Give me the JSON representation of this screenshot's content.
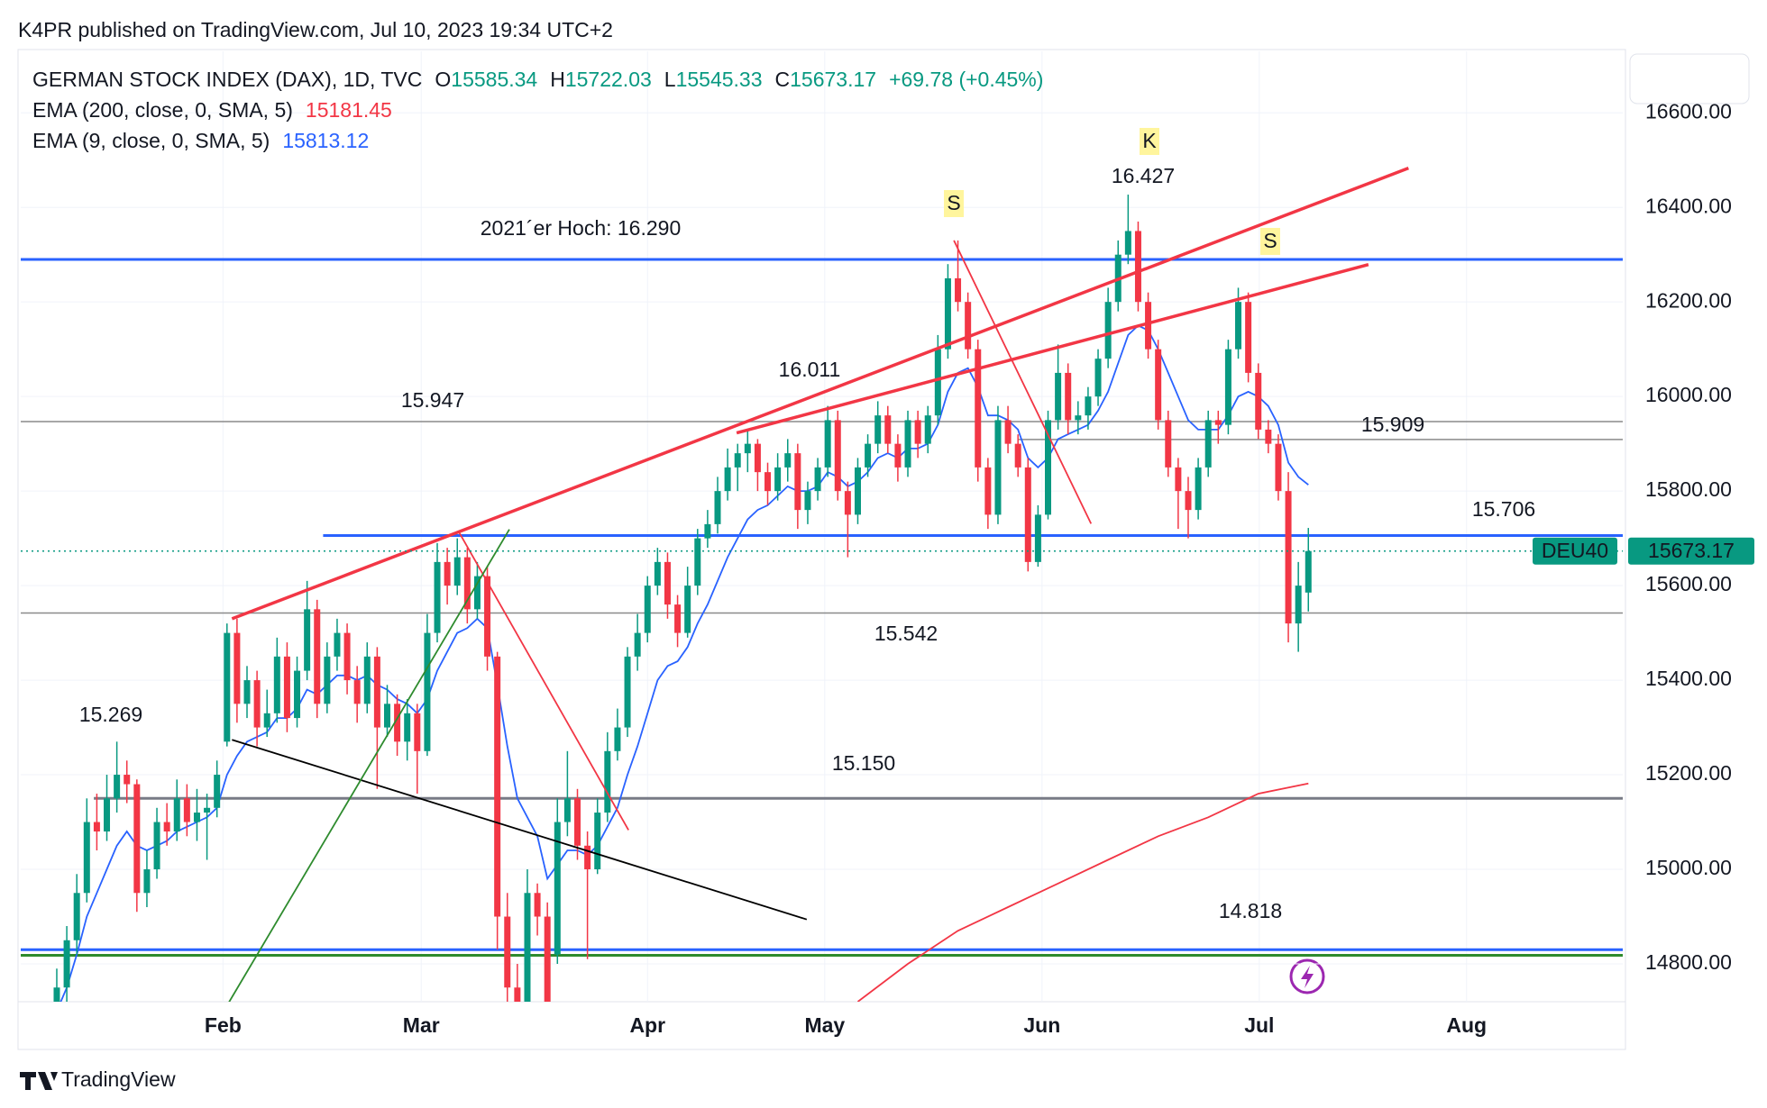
{
  "header": {
    "publisher": "K4PR published on TradingView.com, Jul 10, 2023 19:34 UTC+2",
    "brand": "TradingView"
  },
  "chart_data": {
    "type": "candlestick",
    "title": "GERMAN STOCK INDEX (DAX), 1D, TVC",
    "ohlc_legend": [
      {
        "key": "O",
        "value": 15585.34
      },
      {
        "key": "H",
        "value": 15722.03
      },
      {
        "key": "L",
        "value": 15545.33
      },
      {
        "key": "C",
        "value": 15673.17
      }
    ],
    "change": "+69.78 (+0.45%)",
    "symbol": "DEU40",
    "up_color": "#089981",
    "down_color": "#f23645",
    "candles": [
      [
        14700,
        14790,
        14660,
        14750
      ],
      [
        14750,
        14880,
        14720,
        14850
      ],
      [
        14850,
        14990,
        14820,
        14950
      ],
      [
        14950,
        15150,
        14930,
        15100
      ],
      [
        15100,
        15160,
        15040,
        15080
      ],
      [
        15080,
        15200,
        15060,
        15150
      ],
      [
        15150,
        15270,
        15120,
        15200
      ],
      [
        15200,
        15230,
        15140,
        15180
      ],
      [
        15180,
        15190,
        14910,
        14950
      ],
      [
        14950,
        15040,
        14920,
        15000
      ],
      [
        15000,
        15130,
        14980,
        15100
      ],
      [
        15100,
        15140,
        15050,
        15080
      ],
      [
        15080,
        15190,
        15060,
        15150
      ],
      [
        15150,
        15180,
        15070,
        15100
      ],
      [
        15100,
        15170,
        15060,
        15120
      ],
      [
        15120,
        15160,
        15020,
        15130
      ],
      [
        15130,
        15230,
        15110,
        15200
      ],
      [
        15270,
        15520,
        15260,
        15500
      ],
      [
        15500,
        15530,
        15310,
        15350
      ],
      [
        15350,
        15430,
        15320,
        15400
      ],
      [
        15400,
        15420,
        15260,
        15300
      ],
      [
        15300,
        15380,
        15280,
        15330
      ],
      [
        15330,
        15490,
        15310,
        15450
      ],
      [
        15450,
        15480,
        15290,
        15320
      ],
      [
        15320,
        15450,
        15300,
        15420
      ],
      [
        15420,
        15610,
        15400,
        15550
      ],
      [
        15550,
        15570,
        15320,
        15350
      ],
      [
        15350,
        15480,
        15330,
        15450
      ],
      [
        15450,
        15530,
        15420,
        15500
      ],
      [
        15500,
        15520,
        15370,
        15400
      ],
      [
        15400,
        15430,
        15310,
        15350
      ],
      [
        15350,
        15480,
        15330,
        15450
      ],
      [
        15450,
        15470,
        15170,
        15300
      ],
      [
        15300,
        15390,
        15280,
        15350
      ],
      [
        15350,
        15370,
        15240,
        15270
      ],
      [
        15270,
        15360,
        15230,
        15330
      ],
      [
        15330,
        15350,
        15160,
        15250
      ],
      [
        15250,
        15540,
        15240,
        15500
      ],
      [
        15500,
        15690,
        15480,
        15650
      ],
      [
        15650,
        15680,
        15560,
        15600
      ],
      [
        15600,
        15700,
        15580,
        15660
      ],
      [
        15660,
        15680,
        15520,
        15550
      ],
      [
        15550,
        15650,
        15530,
        15620
      ],
      [
        15620,
        15640,
        15420,
        15450
      ],
      [
        15450,
        15460,
        14830,
        14900
      ],
      [
        14900,
        14950,
        14720,
        14750
      ],
      [
        14750,
        14800,
        14700,
        14700
      ],
      [
        14700,
        15000,
        14700,
        14950
      ],
      [
        14950,
        14970,
        14860,
        14900
      ],
      [
        14900,
        14930,
        14700,
        14700
      ],
      [
        14820,
        15150,
        14800,
        15100
      ],
      [
        15100,
        15250,
        15070,
        15150
      ],
      [
        15150,
        15170,
        15020,
        15050
      ],
      [
        15050,
        15080,
        14810,
        15000
      ],
      [
        15000,
        15150,
        14990,
        15120
      ],
      [
        15120,
        15290,
        15100,
        15250
      ],
      [
        15250,
        15340,
        15230,
        15300
      ],
      [
        15300,
        15470,
        15280,
        15450
      ],
      [
        15450,
        15540,
        15420,
        15500
      ],
      [
        15500,
        15620,
        15480,
        15600
      ],
      [
        15600,
        15680,
        15580,
        15650
      ],
      [
        15650,
        15670,
        15530,
        15560
      ],
      [
        15560,
        15580,
        15470,
        15500
      ],
      [
        15500,
        15640,
        15490,
        15600
      ],
      [
        15600,
        15720,
        15580,
        15700
      ],
      [
        15700,
        15760,
        15680,
        15730
      ],
      [
        15730,
        15830,
        15710,
        15800
      ],
      [
        15800,
        15890,
        15780,
        15850
      ],
      [
        15850,
        15900,
        15800,
        15880
      ],
      [
        15880,
        15930,
        15840,
        15900
      ],
      [
        15900,
        15910,
        15800,
        15840
      ],
      [
        15840,
        15860,
        15770,
        15800
      ],
      [
        15800,
        15880,
        15780,
        15850
      ],
      [
        15850,
        15910,
        15820,
        15880
      ],
      [
        15880,
        15900,
        15720,
        15760
      ],
      [
        15760,
        15820,
        15730,
        15800
      ],
      [
        15800,
        15870,
        15780,
        15850
      ],
      [
        15850,
        15980,
        15830,
        15950
      ],
      [
        15950,
        15970,
        15780,
        15800
      ],
      [
        15800,
        15820,
        15660,
        15750
      ],
      [
        15750,
        15870,
        15730,
        15850
      ],
      [
        15850,
        15920,
        15830,
        15900
      ],
      [
        15900,
        15990,
        15880,
        15960
      ],
      [
        15960,
        15980,
        15880,
        15900
      ],
      [
        15900,
        15920,
        15820,
        15850
      ],
      [
        15850,
        15970,
        15830,
        15950
      ],
      [
        15950,
        15970,
        15870,
        15900
      ],
      [
        15900,
        15980,
        15880,
        15960
      ],
      [
        15960,
        16130,
        15940,
        16100
      ],
      [
        16100,
        16280,
        16080,
        16250
      ],
      [
        16250,
        16330,
        16180,
        16200
      ],
      [
        16200,
        16220,
        16080,
        16100
      ],
      [
        16100,
        16120,
        15820,
        15850
      ],
      [
        15850,
        15870,
        15720,
        15750
      ],
      [
        15750,
        15980,
        15730,
        15950
      ],
      [
        15950,
        15980,
        15880,
        15900
      ],
      [
        15900,
        15920,
        15830,
        15850
      ],
      [
        15850,
        15870,
        15630,
        15650
      ],
      [
        15650,
        15770,
        15640,
        15750
      ],
      [
        15750,
        15970,
        15740,
        15950
      ],
      [
        15950,
        16110,
        15930,
        16050
      ],
      [
        16050,
        16070,
        15920,
        15950
      ],
      [
        15950,
        15990,
        15920,
        15960
      ],
      [
        15960,
        16020,
        15930,
        16000
      ],
      [
        16000,
        16100,
        15980,
        16080
      ],
      [
        16080,
        16230,
        16060,
        16200
      ],
      [
        16200,
        16330,
        16180,
        16300
      ],
      [
        16300,
        16427,
        16280,
        16350
      ],
      [
        16350,
        16370,
        16180,
        16200
      ],
      [
        16200,
        16220,
        16080,
        16100
      ],
      [
        16100,
        16120,
        15930,
        15950
      ],
      [
        15950,
        15970,
        15830,
        15850
      ],
      [
        15850,
        15870,
        15720,
        15800
      ],
      [
        15800,
        15830,
        15700,
        15760
      ],
      [
        15760,
        15870,
        15740,
        15850
      ],
      [
        15850,
        15970,
        15830,
        15950
      ],
      [
        15950,
        15970,
        15900,
        15940
      ],
      [
        15940,
        16120,
        15920,
        16100
      ],
      [
        16100,
        16230,
        16080,
        16200
      ],
      [
        16200,
        16220,
        16030,
        16050
      ],
      [
        16050,
        16070,
        15910,
        15930
      ],
      [
        15930,
        15950,
        15880,
        15900
      ],
      [
        15900,
        15920,
        15780,
        15800
      ],
      [
        15800,
        15840,
        15480,
        15520
      ],
      [
        15520,
        15650,
        15460,
        15600
      ],
      [
        15585.34,
        15722.03,
        15545.33,
        15673.17
      ]
    ],
    "series": [
      {
        "name": "EMA (200, close, 0, SMA, 5)",
        "color": "#f23645",
        "x": [
          80,
          85,
          90,
          95,
          100,
          105,
          110,
          115,
          120,
          125
        ],
        "values": [
          14720,
          14800,
          14870,
          14920,
          14970,
          15020,
          15070,
          15110,
          15160,
          15181.45
        ]
      },
      {
        "name": "EMA (9, close, 0, SMA, 5)",
        "color": "#2962ff",
        "values": [
          14700,
          14750,
          14820,
          14900,
          14950,
          15000,
          15050,
          15080,
          15050,
          15040,
          15050,
          15060,
          15080,
          15090,
          15100,
          15110,
          15130,
          15200,
          15240,
          15270,
          15280,
          15290,
          15320,
          15320,
          15340,
          15380,
          15370,
          15390,
          15410,
          15410,
          15400,
          15410,
          15390,
          15380,
          15360,
          15350,
          15330,
          15360,
          15420,
          15460,
          15500,
          15510,
          15530,
          15510,
          15390,
          15260,
          15150,
          15110,
          15070,
          14980,
          15010,
          15040,
          15040,
          15030,
          15050,
          15090,
          15130,
          15200,
          15260,
          15330,
          15400,
          15430,
          15440,
          15470,
          15520,
          15560,
          15610,
          15660,
          15700,
          15740,
          15760,
          15770,
          15790,
          15810,
          15800,
          15800,
          15810,
          15840,
          15830,
          15810,
          15820,
          15840,
          15870,
          15880,
          15870,
          15890,
          15890,
          15900,
          15940,
          16010,
          16050,
          16060,
          16020,
          15960,
          15960,
          15950,
          15930,
          15870,
          15850,
          15870,
          15910,
          15920,
          15930,
          15940,
          15970,
          16010,
          16070,
          16130,
          16150,
          16140,
          16100,
          16050,
          16000,
          15950,
          15930,
          15930,
          15930,
          15960,
          16000,
          16010,
          16000,
          15980,
          15940,
          15860,
          15830,
          15813.12
        ]
      }
    ],
    "levels": [
      {
        "value": 16290,
        "color": "#2962ff",
        "label": "2021´er Hoch: 16.290"
      },
      {
        "value": 15947,
        "color": "#8a8a8a",
        "label": "15.947"
      },
      {
        "value": 15909,
        "color": "#8a8a8a",
        "label": "15.909",
        "from": 96
      },
      {
        "value": 15706,
        "color": "#2962ff",
        "label": "15.706",
        "from": 26.6
      },
      {
        "value": 15542,
        "color": "#8a8a8a",
        "label": "15.542"
      },
      {
        "value": 15150,
        "color": "#787b86",
        "label": "15.150",
        "from": 3.7
      },
      {
        "value": 14830,
        "color": "#2962ff"
      },
      {
        "value": 14818,
        "color": "#2e8b2e",
        "label": "14.818"
      }
    ],
    "trendlines": [
      {
        "color": "#f23645",
        "x": [
          17.5,
          135
        ],
        "values": [
          15530,
          16483
        ]
      },
      {
        "color": "#f23645",
        "x": [
          67.9,
          131
        ],
        "values": [
          15923,
          16279
        ]
      },
      {
        "color": "#f23645",
        "x": [
          40.2,
          57.1
        ],
        "values": [
          15712,
          15083
        ]
      },
      {
        "color": "#f23645",
        "x": [
          89.6,
          103.3
        ],
        "values": [
          16330,
          15731
        ]
      },
      {
        "color": "#000000",
        "x": [
          17.5,
          74.9
        ],
        "values": [
          15274,
          14894
        ]
      },
      {
        "color": "#2e8b2e",
        "x": [
          17.2,
          45.2
        ],
        "values": [
          14719,
          15719
        ]
      }
    ],
    "notes": [
      {
        "label": "16.427",
        "value": 16427
      },
      {
        "label": "16.011",
        "value": 16011
      },
      {
        "label": "15.269",
        "value": 15269
      }
    ],
    "markers": [
      "S",
      "K",
      "S"
    ],
    "xlim": [
      -3.6,
      156.4
    ],
    "xticks": [
      {
        "value": 16.6,
        "label": "Feb"
      },
      {
        "value": 36.4,
        "label": "Mar"
      },
      {
        "value": 59,
        "label": "Apr"
      },
      {
        "value": 76.7,
        "label": "May"
      },
      {
        "value": 98.4,
        "label": "Jun"
      },
      {
        "value": 120.1,
        "label": "Jul"
      },
      {
        "value": 140.8,
        "label": "Aug"
      }
    ],
    "ylim": [
      14720,
      16730
    ],
    "yticks": [
      {
        "value": 14800,
        "label": "14800.00"
      },
      {
        "value": 15000,
        "label": "15000.00"
      },
      {
        "value": 15200,
        "label": "15200.00"
      },
      {
        "value": 15400,
        "label": "15400.00"
      },
      {
        "value": 15600,
        "label": "15600.00"
      },
      {
        "value": 15800,
        "label": "15800.00"
      },
      {
        "value": 16000,
        "label": "16000.00"
      },
      {
        "value": 16200,
        "label": "16200.00"
      },
      {
        "value": 16400,
        "label": "16400.00"
      },
      {
        "value": 16600,
        "label": "16600.00"
      }
    ],
    "grid": true
  }
}
